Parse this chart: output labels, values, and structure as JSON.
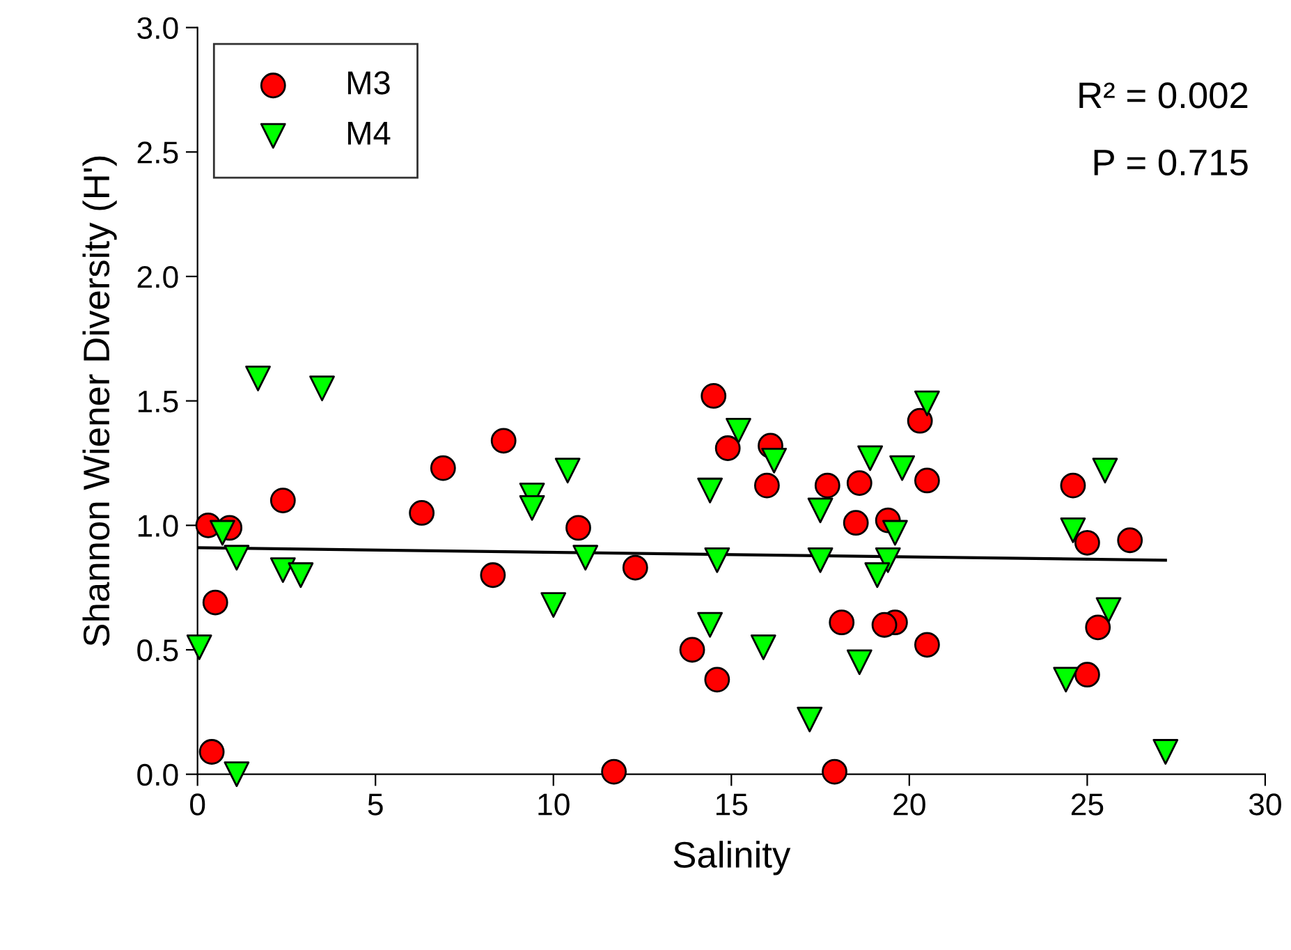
{
  "chart_data": {
    "type": "scatter",
    "xlabel": "Salinity",
    "ylabel": "Shannon Wiener Diversity (H')",
    "xlim": [
      0,
      30
    ],
    "xticks": [
      0,
      5,
      10,
      15,
      20,
      25,
      30
    ],
    "ylim": [
      0,
      3.0
    ],
    "yticks": [
      {
        "value": 0,
        "label": "0.0"
      },
      0.5,
      {
        "value": 1,
        "label": "1.0"
      },
      1.5,
      {
        "value": 2,
        "label": "2.0"
      },
      2.5,
      {
        "value": 3,
        "label": "3.0"
      }
    ],
    "grid": false,
    "legend": "top left",
    "annotations": [
      "R² = 0.002",
      "P = 0.715"
    ],
    "series": [
      {
        "name": "M3",
        "color": "#ff0000",
        "marker": "circle",
        "x": [
          0.3,
          0.9,
          0.5,
          0.4,
          2.4,
          6.3,
          6.9,
          8.6,
          8.3,
          10.7,
          11.7,
          12.3,
          13.9,
          14.5,
          14.9,
          16.1,
          16.0,
          17.7,
          18.6,
          20.3,
          20.5,
          18.5,
          19.4,
          18.1,
          19.6,
          19.3,
          20.5,
          14.6,
          17.9,
          24.6,
          25.0,
          26.2,
          25.3,
          25.0
        ],
        "values": [
          1.0,
          0.99,
          0.69,
          0.09,
          1.1,
          1.05,
          1.23,
          1.34,
          0.8,
          0.99,
          0.01,
          0.83,
          0.5,
          1.52,
          1.31,
          1.32,
          1.16,
          1.16,
          1.17,
          1.42,
          1.18,
          1.01,
          1.02,
          0.61,
          0.61,
          0.6,
          0.52,
          0.38,
          0.01,
          1.16,
          0.93,
          0.94,
          0.59,
          0.4
        ]
      },
      {
        "name": "M4",
        "color": "#00ff00",
        "marker": "triangle",
        "x": [
          1.7,
          3.5,
          0.7,
          1.1,
          2.4,
          2.9,
          0.05,
          1.1,
          10.4,
          9.4,
          9.4,
          10.0,
          10.9,
          20.5,
          15.2,
          16.2,
          18.9,
          19.8,
          14.4,
          17.5,
          19.6,
          14.6,
          17.5,
          19.4,
          19.1,
          14.4,
          15.9,
          18.6,
          17.2,
          25.5,
          24.6,
          25.6,
          24.4,
          27.2
        ],
        "values": [
          1.59,
          1.55,
          0.97,
          0.87,
          0.82,
          0.8,
          0.51,
          0.0,
          1.22,
          1.12,
          1.07,
          0.68,
          0.87,
          1.49,
          1.38,
          1.26,
          1.27,
          1.23,
          1.14,
          1.06,
          0.97,
          0.86,
          0.86,
          0.86,
          0.8,
          0.6,
          0.51,
          0.45,
          0.22,
          1.22,
          0.98,
          0.66,
          0.38,
          0.09
        ]
      },
      {
        "type": "line",
        "color": "#000000",
        "x": [
          0,
          27.2
        ],
        "values": [
          0.91,
          0.86
        ]
      }
    ]
  }
}
